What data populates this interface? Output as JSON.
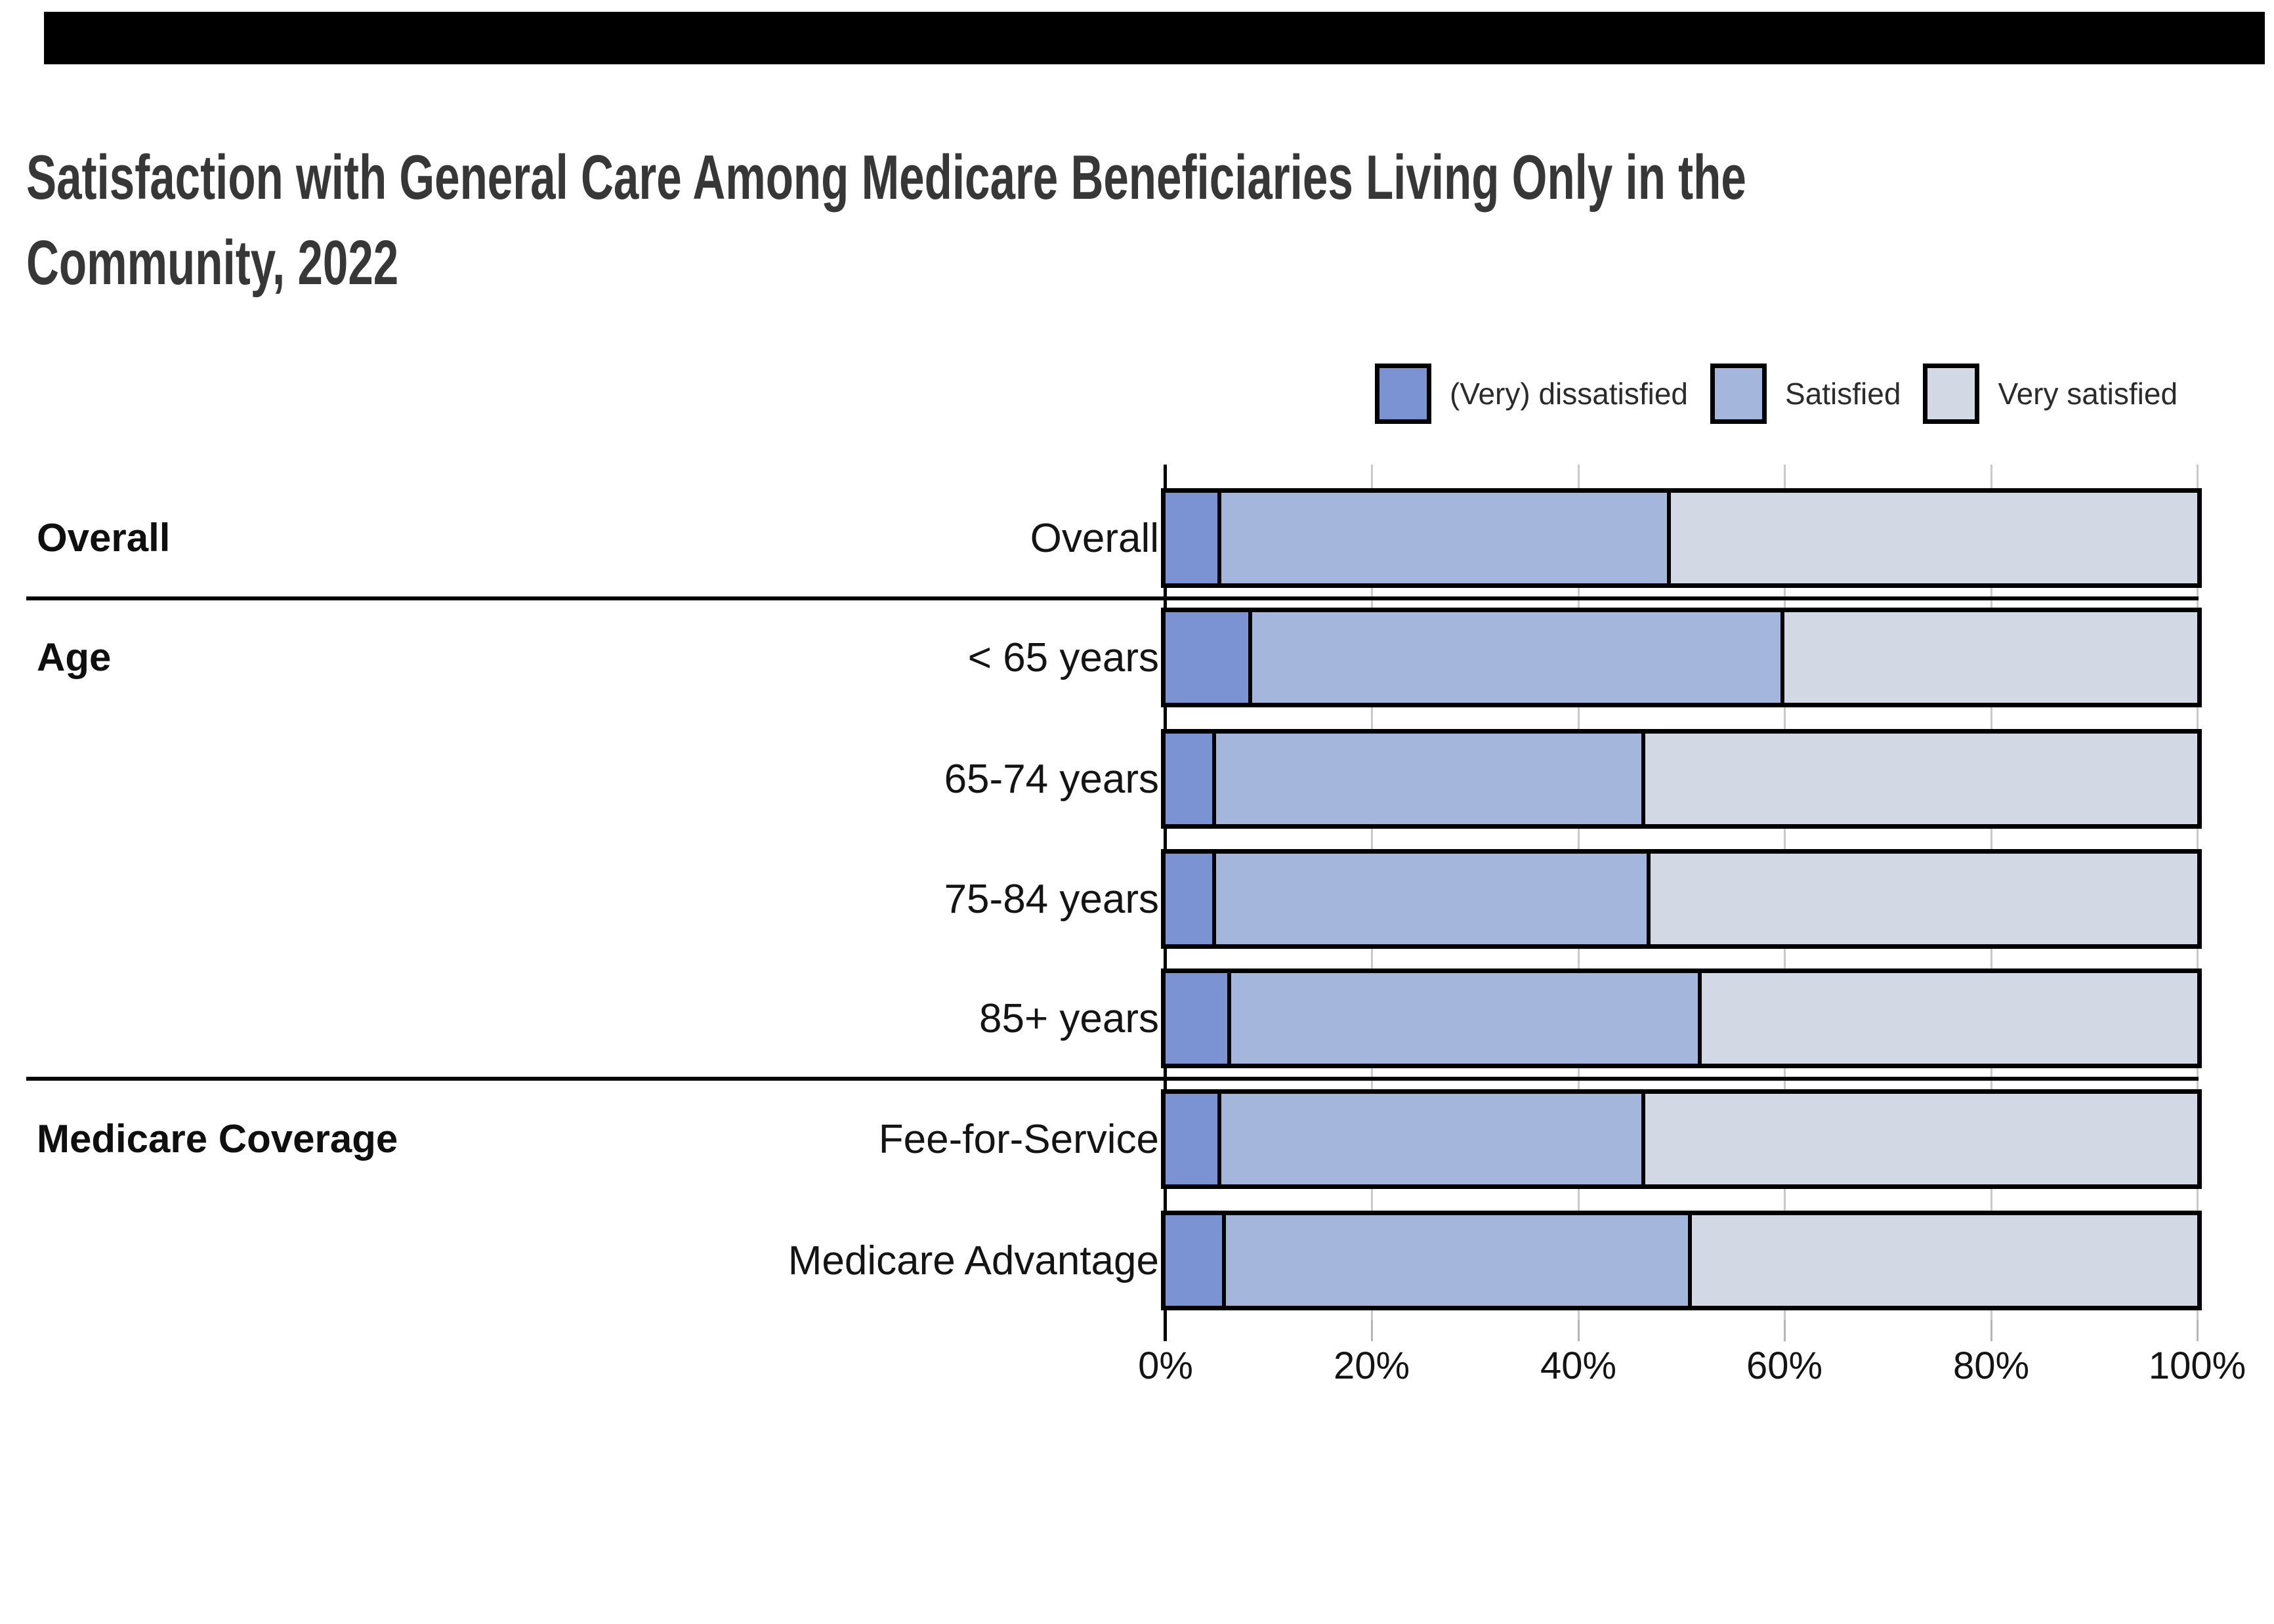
{
  "page": {
    "background": "#ffffff"
  },
  "top_banner": {
    "color": "#000000"
  },
  "title": {
    "text": "Satisfaction with General Care Among Medicare Beneficiaries Living Only in the Community, 2022",
    "line1": "Satisfaction with General Care Among Medicare Beneficiaries Living Only in the",
    "line2": "Community, 2022",
    "color": "#373737"
  },
  "legend": {
    "items": [
      {
        "label": "(Very) dissatisfied",
        "color": "#7B93D3"
      },
      {
        "label": "Satisfied",
        "color": "#A4B6DC"
      },
      {
        "label": "Very satisfied",
        "color": "#D3D9E4"
      }
    ]
  },
  "chart_data": {
    "type": "bar",
    "orientation": "horizontal",
    "stacked": true,
    "title": "Satisfaction with General Care Among Medicare Beneficiaries Living Only in the Community, 2022",
    "categories": [
      "Overall",
      "< 65 years",
      "65-74 years",
      "75-84 years",
      "85+ years",
      "Fee-for-Service",
      "Medicare Advantage"
    ],
    "series": [
      {
        "name": "(Very) dissatisfied",
        "color": "#7B93D3",
        "values": [
          5,
          8,
          4.5,
          4.5,
          6,
          5,
          5.5
        ]
      },
      {
        "name": "Satisfied",
        "color": "#A4B6DC",
        "values": [
          44,
          52,
          42,
          42.5,
          46,
          41.5,
          45.5
        ]
      },
      {
        "name": "Very satisfied",
        "color": "#D3D9E4",
        "values": [
          51,
          40,
          53.5,
          53,
          48,
          53.5,
          49
        ]
      }
    ],
    "x_axis": {
      "tick_labels": [
        "0%",
        "20%",
        "40%",
        "60%",
        "80%",
        "100%"
      ],
      "range": [
        0,
        100
      ],
      "grid": true
    },
    "groups": [
      {
        "label": "Overall",
        "first_row": 0
      },
      {
        "label": "Age",
        "first_row": 1
      },
      {
        "label": "Medicare Coverage",
        "first_row": 5
      }
    ],
    "separators_after_rows": [
      0,
      4
    ],
    "legend_position": "top-right",
    "bar_border_color": "#000000",
    "grid_color": "#c9c9c9"
  }
}
